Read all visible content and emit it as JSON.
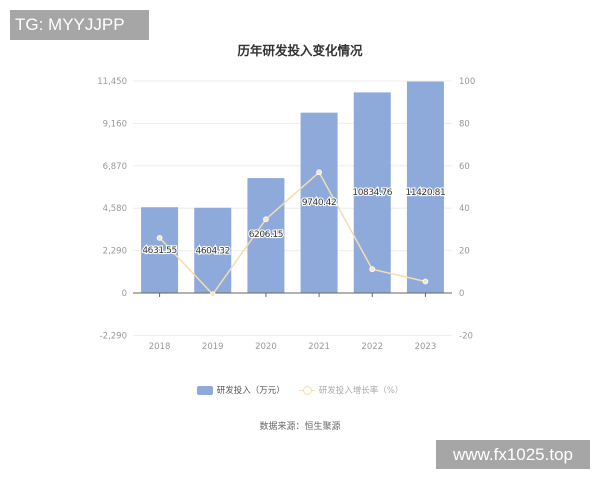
{
  "watermarks": {
    "top_left": "TG: MYYJJPP",
    "bottom_right": "www.fx1025.top"
  },
  "title": "历年研发投入变化情况",
  "legend": {
    "bar_label": "研发投入（万元）",
    "line_label": "研发投入增长率（%）"
  },
  "source": "数据来源：恒生聚源",
  "colors": {
    "bar": "#8eaadb",
    "line": "#f3ddb0",
    "grid": "#eeeeee",
    "axis": "#666666",
    "tick_text": "#999999"
  },
  "chart_data": {
    "type": "bar",
    "title": "历年研发投入变化情况",
    "categories": [
      "2018",
      "2019",
      "2020",
      "2021",
      "2022",
      "2023"
    ],
    "series": [
      {
        "name": "研发投入（万元）",
        "type": "bar",
        "axis": "left",
        "values": [
          4631.55,
          4604.32,
          6206.15,
          9740.42,
          10834.76,
          11420.81
        ],
        "labels": [
          "4631.55",
          "4604.32",
          "6206.15",
          "9740.42",
          "10834.76",
          "11420.81"
        ]
      },
      {
        "name": "研发投入增长率（%）",
        "type": "line",
        "axis": "right",
        "values": [
          26.0,
          -0.59,
          34.79,
          56.94,
          11.23,
          5.42
        ]
      }
    ],
    "left_axis": {
      "ticks": [
        -2290,
        0,
        2290,
        4580,
        6870,
        9160,
        11450
      ],
      "tick_labels": [
        "-2,290",
        "0",
        "2,290",
        "4,580",
        "6,870",
        "9,160",
        "11,450"
      ],
      "ylim": [
        -2290,
        11450
      ]
    },
    "right_axis": {
      "ticks": [
        -20,
        0,
        20,
        40,
        60,
        80,
        100
      ],
      "tick_labels": [
        "-20",
        "0",
        "20",
        "40",
        "60",
        "80",
        "100"
      ],
      "ylim": [
        -20,
        100
      ]
    },
    "xlabel": "",
    "ylabel": "",
    "grid": true,
    "legend_position": "bottom"
  }
}
